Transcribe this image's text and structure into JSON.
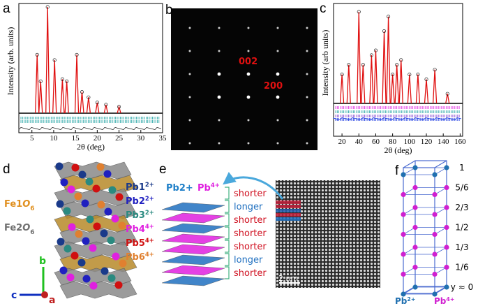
{
  "panel_a": {
    "label": "a",
    "ylabel": "Intensity (arb. units)",
    "xlabel": "2θ (deg)",
    "xlim": [
      2,
      35
    ],
    "xticks": [
      5,
      10,
      15,
      20,
      25,
      30,
      35
    ],
    "peaks": {
      "x": [
        6.2,
        7.0,
        8.6,
        10.2,
        12.0,
        13.0,
        15.3,
        16.5,
        18.0,
        20.0,
        22.0,
        25.0
      ],
      "height": [
        0.55,
        0.3,
        1.0,
        0.5,
        0.32,
        0.3,
        0.55,
        0.2,
        0.15,
        0.1,
        0.08,
        0.06
      ]
    }
  },
  "panel_b": {
    "label": "b",
    "spots": [
      "002",
      "200"
    ]
  },
  "panel_c": {
    "label": "c",
    "ylabel": "Intensity (arb units)",
    "xlabel": "2θ (deg)",
    "xlim": [
      10,
      163
    ],
    "xticks": [
      20,
      40,
      60,
      80,
      100,
      120,
      140,
      160
    ],
    "peaks": {
      "x": [
        20,
        28,
        40,
        45,
        55,
        60,
        70,
        75,
        80,
        85,
        90,
        100,
        110,
        120,
        130,
        145
      ],
      "height": [
        0.3,
        0.4,
        0.95,
        0.4,
        0.5,
        0.55,
        0.75,
        0.9,
        0.3,
        0.4,
        0.45,
        0.3,
        0.3,
        0.25,
        0.35,
        0.1
      ]
    }
  },
  "panel_d": {
    "label": "d",
    "octahedra": [
      {
        "element": "Fe1",
        "ligand": "O",
        "count": "6"
      },
      {
        "element": "Fe2",
        "ligand": "O",
        "count": "6"
      }
    ],
    "sites": [
      {
        "element": "Pb1",
        "charge": "2+"
      },
      {
        "element": "Pb2",
        "charge": "2+"
      },
      {
        "element": "Pb3",
        "charge": "2+"
      },
      {
        "element": "Pb4",
        "charge": "4+"
      },
      {
        "element": "Pb5",
        "charge": "4+"
      },
      {
        "element": "Pb6",
        "charge": "4+"
      }
    ],
    "axes": [
      "b",
      "c",
      "a"
    ]
  },
  "panel_e": {
    "label": "e",
    "legend": [
      "Pb2+",
      "Pb"
    ],
    "legend_charge": "4+",
    "layers": [
      "shorter",
      "longer",
      "shorter",
      "shorter",
      "shorter",
      "longer",
      "shorter"
    ],
    "scale_bar": "2 nm"
  },
  "panel_f": {
    "label": "f",
    "levels": [
      "1",
      "5/6",
      "2/3",
      "1/2",
      "1/3",
      "1/6",
      "y ≈ 0"
    ],
    "legend": [
      {
        "element": "Pb",
        "charge": "2+"
      },
      {
        "element": "Pb",
        "charge": "4+"
      }
    ]
  }
}
